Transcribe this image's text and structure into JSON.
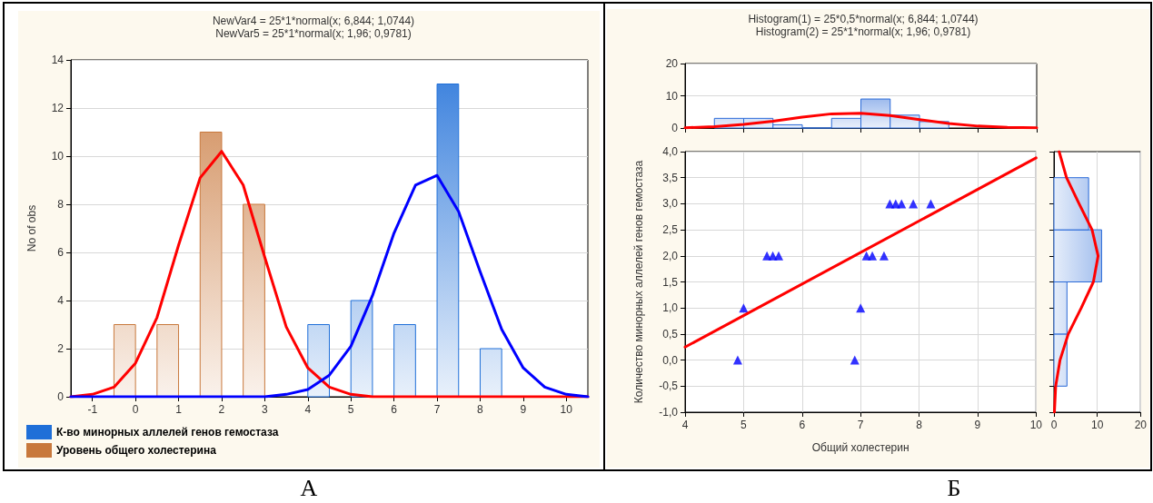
{
  "chart_data": [
    {
      "type": "bar",
      "title": "NewVar4 = 25*1*normal(x; 6,844; 1,0744)",
      "subtitle": "NewVar5 = 25*1*normal(x; 1,96; 0,9781)",
      "ylabel": "No of obs",
      "xlim": [
        -1.5,
        10.5
      ],
      "xticks": [
        -1,
        0,
        1,
        2,
        3,
        4,
        5,
        6,
        7,
        8,
        9,
        10
      ],
      "ylim": [
        0,
        14
      ],
      "yticks": [
        0,
        2,
        4,
        6,
        8,
        10,
        12,
        14
      ],
      "grid": "y",
      "legend": "bottom left",
      "annotations": [
        "А"
      ],
      "series": [
        {
          "name": "К-во минорных аллелей генов гемостаза",
          "color": "#1f6fd8",
          "x": [
            4,
            5,
            6,
            7,
            8
          ],
          "values": [
            3,
            4,
            3,
            13,
            2
          ]
        },
        {
          "name": "Уровень общего холестерина",
          "color": "#c8783c",
          "x": [
            0,
            1,
            2,
            3
          ],
          "values": [
            3,
            3,
            11,
            8
          ]
        },
        {
          "type": "line",
          "color": "#ff0000",
          "x": [
            -1.5,
            -1,
            -0.5,
            0,
            0.5,
            1,
            1.5,
            2,
            2.5,
            3,
            3.5,
            4,
            4.5,
            5,
            5.5,
            6,
            6.5,
            7,
            7.5,
            8,
            8.5,
            9,
            9.5,
            10,
            10.5
          ],
          "values": [
            0,
            0.1,
            0.4,
            1.4,
            3.3,
            6.3,
            9.1,
            10.2,
            8.8,
            5.8,
            2.9,
            1.2,
            0.4,
            0.1,
            0,
            0,
            0,
            0,
            0,
            0,
            0,
            0,
            0,
            0,
            0
          ]
        },
        {
          "type": "line",
          "color": "#0000ff",
          "x": [
            -1.5,
            -1,
            -0.5,
            0,
            0.5,
            1,
            1.5,
            2,
            2.5,
            3,
            3.5,
            4,
            4.5,
            5,
            5.5,
            6,
            6.5,
            7,
            7.5,
            8,
            8.5,
            9,
            9.5,
            10,
            10.5
          ],
          "values": [
            0,
            0,
            0,
            0,
            0,
            0,
            0,
            0,
            0,
            0,
            0.1,
            0.3,
            0.9,
            2.1,
            4.2,
            6.8,
            8.8,
            9.2,
            7.7,
            5.2,
            2.8,
            1.2,
            0.4,
            0.1,
            0
          ]
        }
      ]
    },
    {
      "type": "histogram",
      "title": "Histogram(1) = 25*0,5*normal(x; 6,844; 1,0744)",
      "subtitle": "Histogram(2) = 25*1*normal(x; 1,96; 0,9781)",
      "xlim": [
        4,
        10
      ],
      "xticks": [
        4,
        5,
        6,
        7,
        8,
        9,
        10
      ],
      "ylim": [
        0,
        20
      ],
      "yticks": [
        0,
        10,
        20
      ],
      "grid": "y",
      "tick_labels": "y",
      "series": [
        {
          "color": "#2a6ad8",
          "bins": [
            4.5,
            5,
            5.5,
            6,
            6.5,
            7,
            7.5,
            8,
            8.5
          ],
          "values": [
            3,
            3,
            1,
            0,
            3,
            9,
            4,
            2
          ]
        },
        {
          "type": "line",
          "color": "#ff0000",
          "x": [
            4,
            4.5,
            5,
            5.5,
            6,
            6.5,
            7,
            7.5,
            8,
            8.5,
            9,
            9.5,
            10
          ],
          "values": [
            0.1,
            0.4,
            1.1,
            2.1,
            3.4,
            4.4,
            4.6,
            3.9,
            2.6,
            1.4,
            0.6,
            0.2,
            0.1
          ]
        }
      ]
    },
    {
      "type": "scatter",
      "xlabel": "Общий холестерин",
      "ylabel": "Количество минорных аллелей генов гемостаза",
      "xlim": [
        4,
        10
      ],
      "xticks": [
        4,
        5,
        6,
        7,
        8,
        9,
        10
      ],
      "ylim": [
        -1,
        4
      ],
      "yticks": [
        {
          "value": -1,
          "label": "-1,0"
        },
        {
          "value": -0.5,
          "label": "-0,5"
        },
        {
          "value": 0,
          "label": "0,0"
        },
        {
          "value": 0.5,
          "label": "0,5"
        },
        {
          "value": 1,
          "label": "1,0"
        },
        {
          "value": 1.5,
          "label": "1,5"
        },
        {
          "value": 2,
          "label": "2,0"
        },
        {
          "value": 2.5,
          "label": "2,5"
        },
        {
          "value": 3,
          "label": "3,0"
        },
        {
          "value": 3.5,
          "label": "3,5"
        },
        {
          "value": 4,
          "label": "4,0"
        }
      ],
      "grid": true,
      "annotations": [
        "Б"
      ],
      "series": [
        {
          "marker": "triangle",
          "color": "#0000ff",
          "x": [
            4.9,
            5.0,
            5.4,
            5.5,
            5.6,
            6.9,
            7.0,
            7.1,
            7.2,
            7.4,
            7.5,
            7.6,
            7.7,
            7.9,
            8.2
          ],
          "values": [
            0,
            1,
            2,
            2,
            2,
            0,
            1,
            2,
            2,
            2,
            3,
            3,
            3,
            3,
            3
          ]
        },
        {
          "type": "line",
          "color": "#ff0000",
          "x": [
            4,
            10
          ],
          "values": [
            0.25,
            3.88
          ]
        }
      ]
    },
    {
      "type": "histogram",
      "orientation": "horizontal",
      "xlim": [
        0,
        20
      ],
      "xticks": [
        0,
        10,
        20
      ],
      "ylim": [
        -1,
        4
      ],
      "yticks": [
        -1,
        -0.5,
        0,
        0.5,
        1,
        1.5,
        2,
        2.5,
        3,
        3.5,
        4
      ],
      "grid": "x",
      "tick_labels": "x",
      "series": [
        {
          "color": "#2a6ad8",
          "bins": [
            -0.5,
            0.5,
            1.5,
            2.5,
            3.5
          ],
          "values": [
            3,
            3,
            11,
            8
          ]
        },
        {
          "type": "line",
          "color": "#ff0000",
          "x": [
            -1,
            -0.5,
            0,
            0.5,
            1,
            1.5,
            2,
            2.5,
            3,
            3.5,
            4
          ],
          "values": [
            0.1,
            0.4,
            1.4,
            3.3,
            6.3,
            9.1,
            10.2,
            8.8,
            5.8,
            2.9,
            1.2
          ]
        }
      ]
    }
  ]
}
